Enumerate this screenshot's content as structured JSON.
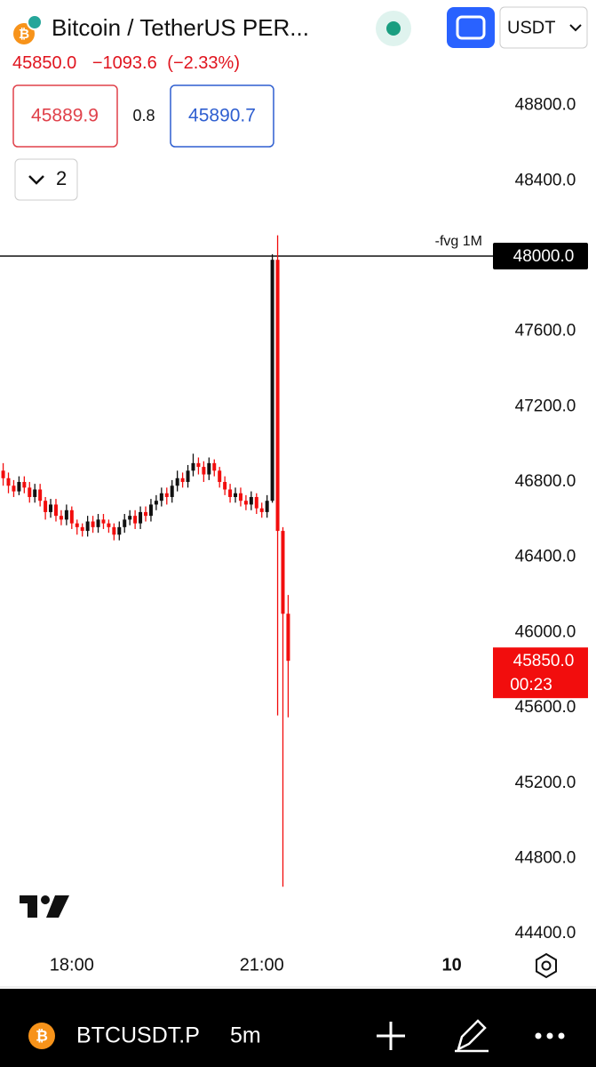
{
  "header": {
    "title": "Bitcoin / TetherUS PER...",
    "price": "45850.0",
    "change": "−1093.6",
    "change_pct": "(−2.33%)",
    "bid": "45889.9",
    "spread": "0.8",
    "ask": "45890.7",
    "collapse_count": "2",
    "currency": "USDT"
  },
  "chart_data": {
    "type": "candlestick",
    "x": [
      1015,
      1020,
      1025,
      1030,
      1035,
      1040,
      1045,
      1050,
      1055,
      1060,
      1065,
      1070,
      1075,
      1080,
      1085,
      1090,
      1095,
      1100,
      1105,
      1110,
      1115,
      1120,
      1125,
      1130,
      1135,
      1140,
      1145,
      1150,
      1155,
      1160,
      1165,
      1170,
      1175,
      1180,
      1185,
      1190,
      1195,
      1200,
      1205,
      1210,
      1215,
      1220,
      1225,
      1230,
      1235,
      1240,
      1245,
      1250,
      1255,
      1260,
      1265,
      1270,
      1275,
      1280,
      1285
    ],
    "open": [
      46860,
      46820,
      46780,
      46750,
      46800,
      46770,
      46720,
      46760,
      46700,
      46640,
      46680,
      46620,
      46600,
      46650,
      46580,
      46560,
      46540,
      46590,
      46560,
      46600,
      46580,
      46560,
      46520,
      46560,
      46600,
      46620,
      46580,
      46640,
      46620,
      46680,
      46700,
      46740,
      46720,
      46780,
      46820,
      46800,
      46860,
      46900,
      46880,
      46840,
      46900,
      46860,
      46800,
      46760,
      46720,
      46740,
      46700,
      46680,
      46720,
      46660,
      46640,
      46700,
      47980,
      46540,
      46100
    ],
    "high": [
      46900,
      46850,
      46810,
      46830,
      46830,
      46800,
      46790,
      46790,
      46720,
      46710,
      46710,
      46650,
      46680,
      46670,
      46600,
      46580,
      46620,
      46620,
      46630,
      46630,
      46600,
      46580,
      46590,
      46630,
      46650,
      46650,
      46670,
      46670,
      46710,
      46730,
      46770,
      46770,
      46810,
      46860,
      46850,
      46890,
      46950,
      46930,
      46910,
      46930,
      46920,
      46880,
      46830,
      46790,
      46770,
      46770,
      46730,
      46750,
      46740,
      46690,
      46730,
      48010,
      48110,
      46560,
      46200
    ],
    "low": [
      46780,
      46740,
      46720,
      46730,
      46740,
      46690,
      46690,
      46670,
      46600,
      46610,
      46590,
      46570,
      46570,
      46550,
      46520,
      46510,
      46510,
      46530,
      46530,
      46550,
      46530,
      46490,
      46490,
      46530,
      46570,
      46550,
      46550,
      46590,
      46590,
      46650,
      46670,
      46680,
      46690,
      46750,
      46770,
      46770,
      46830,
      46840,
      46800,
      46810,
      46830,
      46770,
      46730,
      46690,
      46690,
      46670,
      46650,
      46650,
      46630,
      46610,
      46610,
      46690,
      45560,
      44650,
      45550
    ],
    "close": [
      46820,
      46780,
      46750,
      46800,
      46770,
      46720,
      46760,
      46700,
      46640,
      46680,
      46620,
      46600,
      46650,
      46580,
      46560,
      46540,
      46590,
      46560,
      46600,
      46580,
      46560,
      46520,
      46560,
      46600,
      46620,
      46580,
      46640,
      46620,
      46680,
      46700,
      46740,
      46720,
      46780,
      46820,
      46800,
      46860,
      46900,
      46880,
      46840,
      46900,
      46860,
      46800,
      46760,
      46720,
      46740,
      46700,
      46680,
      46720,
      46660,
      46640,
      46700,
      47980,
      46540,
      46100,
      45850
    ],
    "up_color": "#111111",
    "down_color": "#f20d0d",
    "xlim": [
      1012,
      1479
    ],
    "xticks": [
      {
        "value": 1080,
        "label": "18:00"
      },
      {
        "value": 1260,
        "label": "21:00"
      },
      {
        "value": 1440,
        "label": "10"
      }
    ],
    "ylim": [
      44330,
      49360
    ],
    "yticks": [
      {
        "value": 44400,
        "label": "44400.0"
      },
      {
        "value": 44800,
        "label": "44800.0"
      },
      {
        "value": 45200,
        "label": "45200.0"
      },
      {
        "value": 45600,
        "label": "45600.0"
      },
      {
        "value": 46000,
        "label": "46000.0"
      },
      {
        "value": 46400,
        "label": "46400.0"
      },
      {
        "value": 46800,
        "label": "46800.0"
      },
      {
        "value": 47200,
        "label": "47200.0"
      },
      {
        "value": 47600,
        "label": "47600.0"
      },
      {
        "value": 48400,
        "label": "48400.0"
      },
      {
        "value": 48800,
        "label": "48800.0"
      }
    ],
    "hline": {
      "value": 48000,
      "value_label": "48000.0",
      "label": "-fvg 1M"
    },
    "last_price": {
      "value": 45850,
      "label": "45850.0",
      "countdown": "00:23"
    }
  },
  "footer": {
    "symbol": "BTCUSDT.P",
    "interval": "5m"
  }
}
